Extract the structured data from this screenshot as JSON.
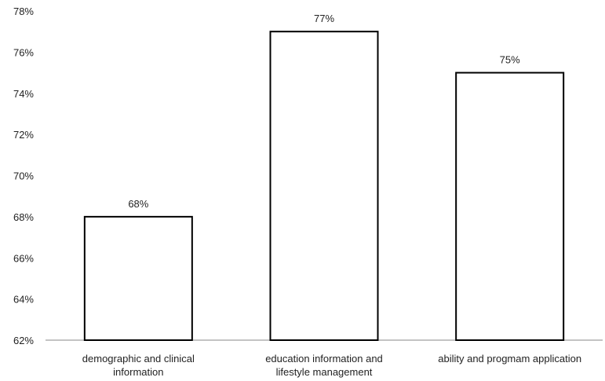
{
  "chart_data": {
    "type": "bar",
    "categories": [
      "demographic and clinical information",
      "education information and lifestyle management",
      "ability and progmam application"
    ],
    "values": [
      68,
      77,
      75
    ],
    "data_labels": [
      "68%",
      "77%",
      "75%"
    ],
    "ylim": [
      62,
      78
    ],
    "yticks": [
      62,
      64,
      66,
      68,
      70,
      72,
      74,
      76,
      78
    ],
    "ytick_labels": [
      "62%",
      "64%",
      "66%",
      "68%",
      "70%",
      "72%",
      "74%",
      "76%",
      "78%"
    ],
    "grid": false,
    "legend": "none",
    "colors": {
      "bar_fill": "#ffffff",
      "bar_stroke": "#000000",
      "axis": "#888888",
      "text": "#222222"
    }
  }
}
